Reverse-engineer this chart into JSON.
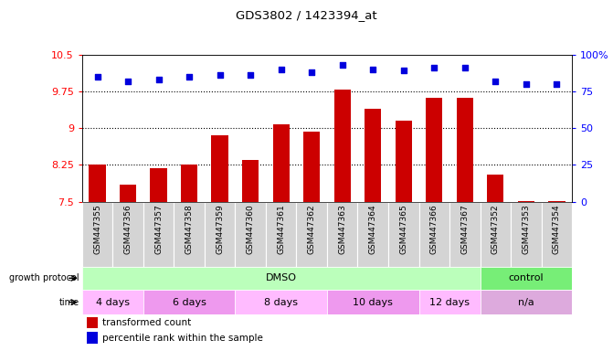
{
  "title": "GDS3802 / 1423394_at",
  "samples": [
    "GSM447355",
    "GSM447356",
    "GSM447357",
    "GSM447358",
    "GSM447359",
    "GSM447360",
    "GSM447361",
    "GSM447362",
    "GSM447363",
    "GSM447364",
    "GSM447365",
    "GSM447366",
    "GSM447367",
    "GSM447352",
    "GSM447353",
    "GSM447354"
  ],
  "bar_values": [
    8.25,
    7.85,
    8.18,
    8.25,
    8.85,
    8.35,
    9.08,
    8.92,
    9.78,
    9.4,
    9.15,
    9.62,
    9.62,
    8.05,
    7.52,
    7.52
  ],
  "dot_values": [
    85,
    82,
    83,
    85,
    86,
    86,
    90,
    88,
    93,
    90,
    89,
    91,
    91,
    82,
    80,
    80
  ],
  "bar_color": "#cc0000",
  "dot_color": "#0000dd",
  "ylim_left": [
    7.5,
    10.5
  ],
  "ylim_right": [
    0,
    100
  ],
  "yticks_left": [
    7.5,
    8.25,
    9.0,
    9.75,
    10.5
  ],
  "yticks_left_labels": [
    "7.5",
    "8.25",
    "9",
    "9.75",
    "10.5"
  ],
  "yticks_right": [
    0,
    25,
    50,
    75,
    100
  ],
  "yticks_right_labels": [
    "0",
    "25",
    "50",
    "75",
    "100%"
  ],
  "hlines": [
    8.25,
    9.0,
    9.75
  ],
  "growth_protocol_groups": [
    {
      "label": "DMSO",
      "start": 0,
      "end": 13,
      "color": "#bbffbb"
    },
    {
      "label": "control",
      "start": 13,
      "end": 16,
      "color": "#77ee77"
    }
  ],
  "time_groups": [
    {
      "label": "4 days",
      "start": 0,
      "end": 2,
      "color": "#ffbbff"
    },
    {
      "label": "6 days",
      "start": 2,
      "end": 5,
      "color": "#ee99ee"
    },
    {
      "label": "8 days",
      "start": 5,
      "end": 8,
      "color": "#ffbbff"
    },
    {
      "label": "10 days",
      "start": 8,
      "end": 11,
      "color": "#ee99ee"
    },
    {
      "label": "12 days",
      "start": 11,
      "end": 13,
      "color": "#ffbbff"
    },
    {
      "label": "n/a",
      "start": 13,
      "end": 16,
      "color": "#ddaadd"
    }
  ],
  "legend_bar_label": "transformed count",
  "legend_dot_label": "percentile rank within the sample",
  "growth_protocol_label": "growth protocol",
  "time_label": "time",
  "bar_base": 7.5,
  "col_bg_color": "#d8d8d8",
  "col_bg_color2": "#ffffff"
}
